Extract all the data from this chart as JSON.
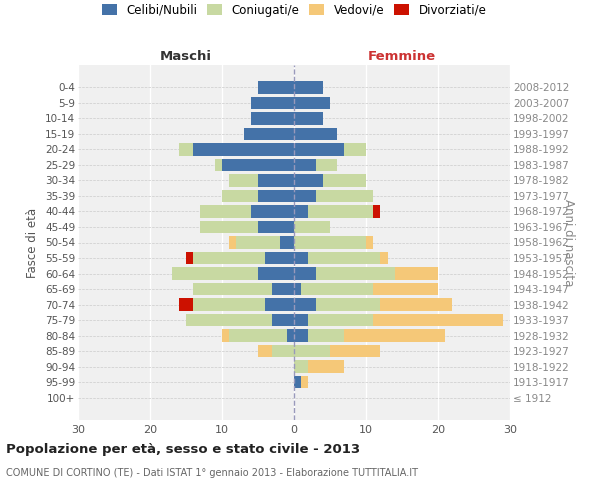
{
  "age_groups": [
    "100+",
    "95-99",
    "90-94",
    "85-89",
    "80-84",
    "75-79",
    "70-74",
    "65-69",
    "60-64",
    "55-59",
    "50-54",
    "45-49",
    "40-44",
    "35-39",
    "30-34",
    "25-29",
    "20-24",
    "15-19",
    "10-14",
    "5-9",
    "0-4"
  ],
  "birth_years": [
    "≤ 1912",
    "1913-1917",
    "1918-1922",
    "1923-1927",
    "1928-1932",
    "1933-1937",
    "1938-1942",
    "1943-1947",
    "1948-1952",
    "1953-1957",
    "1958-1962",
    "1963-1967",
    "1968-1972",
    "1973-1977",
    "1978-1982",
    "1983-1987",
    "1988-1992",
    "1993-1997",
    "1998-2002",
    "2003-2007",
    "2008-2012"
  ],
  "maschi": {
    "celibe": [
      0,
      0,
      0,
      0,
      1,
      3,
      4,
      3,
      5,
      4,
      2,
      5,
      6,
      5,
      5,
      10,
      14,
      7,
      6,
      6,
      5
    ],
    "coniugato": [
      0,
      0,
      0,
      3,
      8,
      12,
      10,
      11,
      12,
      10,
      6,
      8,
      7,
      5,
      4,
      1,
      2,
      0,
      0,
      0,
      0
    ],
    "vedovo": [
      0,
      0,
      0,
      2,
      1,
      0,
      0,
      0,
      0,
      0,
      1,
      0,
      0,
      0,
      0,
      0,
      0,
      0,
      0,
      0,
      0
    ],
    "divorziato": [
      0,
      0,
      0,
      0,
      0,
      0,
      2,
      0,
      0,
      1,
      0,
      0,
      0,
      0,
      0,
      0,
      0,
      0,
      0,
      0,
      0
    ]
  },
  "femmine": {
    "nubile": [
      0,
      1,
      0,
      0,
      2,
      2,
      3,
      1,
      3,
      2,
      0,
      0,
      2,
      3,
      4,
      3,
      7,
      6,
      4,
      5,
      4
    ],
    "coniugata": [
      0,
      0,
      2,
      5,
      5,
      9,
      9,
      10,
      11,
      10,
      10,
      5,
      9,
      8,
      6,
      3,
      3,
      0,
      0,
      0,
      0
    ],
    "vedova": [
      0,
      1,
      5,
      7,
      14,
      18,
      10,
      9,
      6,
      1,
      1,
      0,
      0,
      0,
      0,
      0,
      0,
      0,
      0,
      0,
      0
    ],
    "divorziata": [
      0,
      0,
      0,
      0,
      0,
      0,
      0,
      0,
      0,
      0,
      0,
      0,
      1,
      0,
      0,
      0,
      0,
      0,
      0,
      0,
      0
    ]
  },
  "colors": {
    "celibe": "#4472a8",
    "coniugato": "#c8d9a2",
    "vedovo": "#f5c878",
    "divorziato": "#cc1100"
  },
  "legend_labels": [
    "Celibi/Nubili",
    "Coniugati/e",
    "Vedovi/e",
    "Divorziati/e"
  ],
  "title": "Popolazione per età, sesso e stato civile - 2013",
  "subtitle": "COMUNE DI CORTINO (TE) - Dati ISTAT 1° gennaio 2013 - Elaborazione TUTTITALIA.IT",
  "xlabel_left": "Maschi",
  "xlabel_right": "Femmine",
  "ylabel_left": "Fasce di età",
  "ylabel_right": "Anni di nascita",
  "xlim": 30,
  "bg_color": "#ffffff",
  "plot_bg": "#f0f0f0"
}
